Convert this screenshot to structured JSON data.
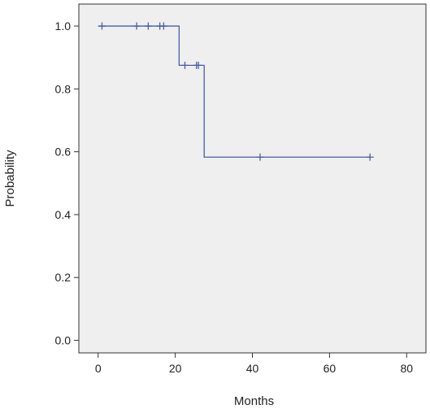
{
  "chart_data": {
    "type": "line",
    "subtype": "kaplan-meier step curve",
    "title": "",
    "xlabel": "Months",
    "ylabel": "Probability",
    "xlim": [
      -5,
      85
    ],
    "ylim": [
      -0.04,
      1.07
    ],
    "xticks": [
      0,
      20,
      40,
      60,
      80
    ],
    "yticks": [
      0.0,
      0.2,
      0.4,
      0.6,
      0.8,
      1.0
    ],
    "xtick_labels": [
      "0",
      "20",
      "40",
      "60",
      "80"
    ],
    "ytick_labels": [
      "0.0",
      "0.2",
      "0.4",
      "0.6",
      "0.8",
      "1.0"
    ],
    "grid": false,
    "legend": "none",
    "series": [
      {
        "step_points": [
          [
            0,
            1.0
          ],
          [
            21,
            1.0
          ],
          [
            21,
            0.875
          ],
          [
            27.5,
            0.875
          ],
          [
            27.5,
            0.583
          ],
          [
            70.5,
            0.583
          ]
        ],
        "censor_marks": [
          [
            1,
            1.0
          ],
          [
            10,
            1.0
          ],
          [
            13,
            1.0
          ],
          [
            16,
            1.0
          ],
          [
            17,
            1.0
          ],
          [
            22.5,
            0.875
          ],
          [
            25.5,
            0.875
          ],
          [
            26,
            0.875
          ],
          [
            42,
            0.583
          ],
          [
            70.5,
            0.583
          ]
        ]
      }
    ],
    "colors": {
      "line": "#4a5fa8",
      "plot_background": "#efefef",
      "frame": "#333333"
    }
  }
}
